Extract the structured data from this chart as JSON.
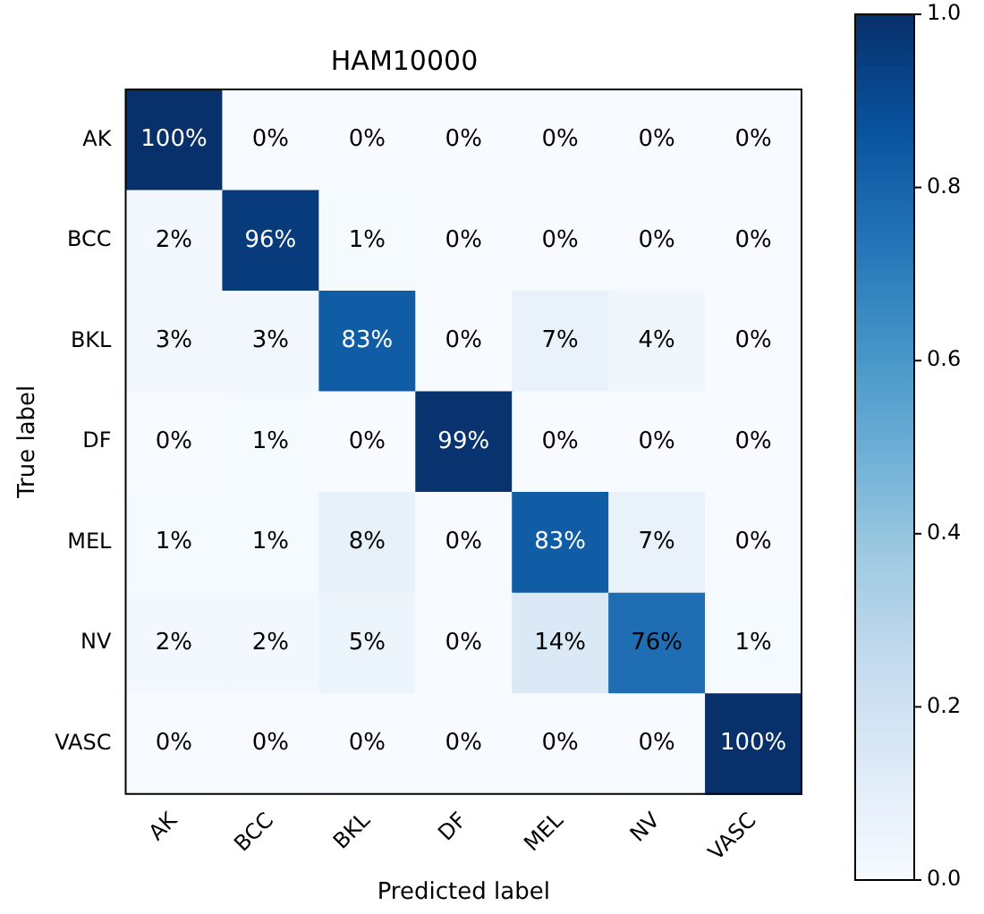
{
  "chart_data": {
    "type": "heatmap",
    "title": "HAM10000",
    "xlabel": "Predicted label",
    "ylabel": "True label",
    "categories": [
      "AK",
      "BCC",
      "BKL",
      "DF",
      "MEL",
      "NV",
      "VASC"
    ],
    "y_categories": [
      "AK",
      "BCC",
      "BKL",
      "DF",
      "MEL",
      "NV",
      "VASC"
    ],
    "cells": [
      [
        1.0,
        0,
        0,
        0,
        0,
        0,
        0
      ],
      [
        0.02,
        0.96,
        0.01,
        0,
        0,
        0,
        0
      ],
      [
        0.03,
        0.03,
        0.83,
        0,
        0.07,
        0.04,
        0
      ],
      [
        0,
        0.01,
        0,
        0.99,
        0,
        0,
        0
      ],
      [
        0.01,
        0.01,
        0.08,
        0,
        0.83,
        0.07,
        0
      ],
      [
        0.02,
        0.02,
        0.05,
        0,
        0.14,
        0.76,
        0.01
      ],
      [
        0,
        0,
        0,
        0,
        0,
        0,
        1.0
      ]
    ],
    "cell_labels": [
      [
        "100%",
        "0%",
        "0%",
        "0%",
        "0%",
        "0%",
        "0%"
      ],
      [
        "2%",
        "96%",
        "1%",
        "0%",
        "0%",
        "0%",
        "0%"
      ],
      [
        "3%",
        "3%",
        "83%",
        "0%",
        "7%",
        "4%",
        "0%"
      ],
      [
        "0%",
        "1%",
        "0%",
        "99%",
        "0%",
        "0%",
        "0%"
      ],
      [
        "1%",
        "1%",
        "8%",
        "0%",
        "83%",
        "7%",
        "0%"
      ],
      [
        "2%",
        "2%",
        "5%",
        "0%",
        "14%",
        "76%",
        "1%"
      ],
      [
        "0%",
        "0%",
        "0%",
        "0%",
        "0%",
        "0%",
        "100%"
      ]
    ],
    "clim": [
      0,
      1
    ],
    "cticks": [
      {
        "value": 0,
        "label": "0.0"
      },
      {
        "value": 0.2,
        "label": "0.2"
      },
      {
        "value": 0.4,
        "label": "0.4"
      },
      {
        "value": 0.6,
        "label": "0.6"
      },
      {
        "value": 0.8,
        "label": "0.8"
      },
      {
        "value": 1,
        "label": "1.0"
      }
    ],
    "grid": false
  }
}
